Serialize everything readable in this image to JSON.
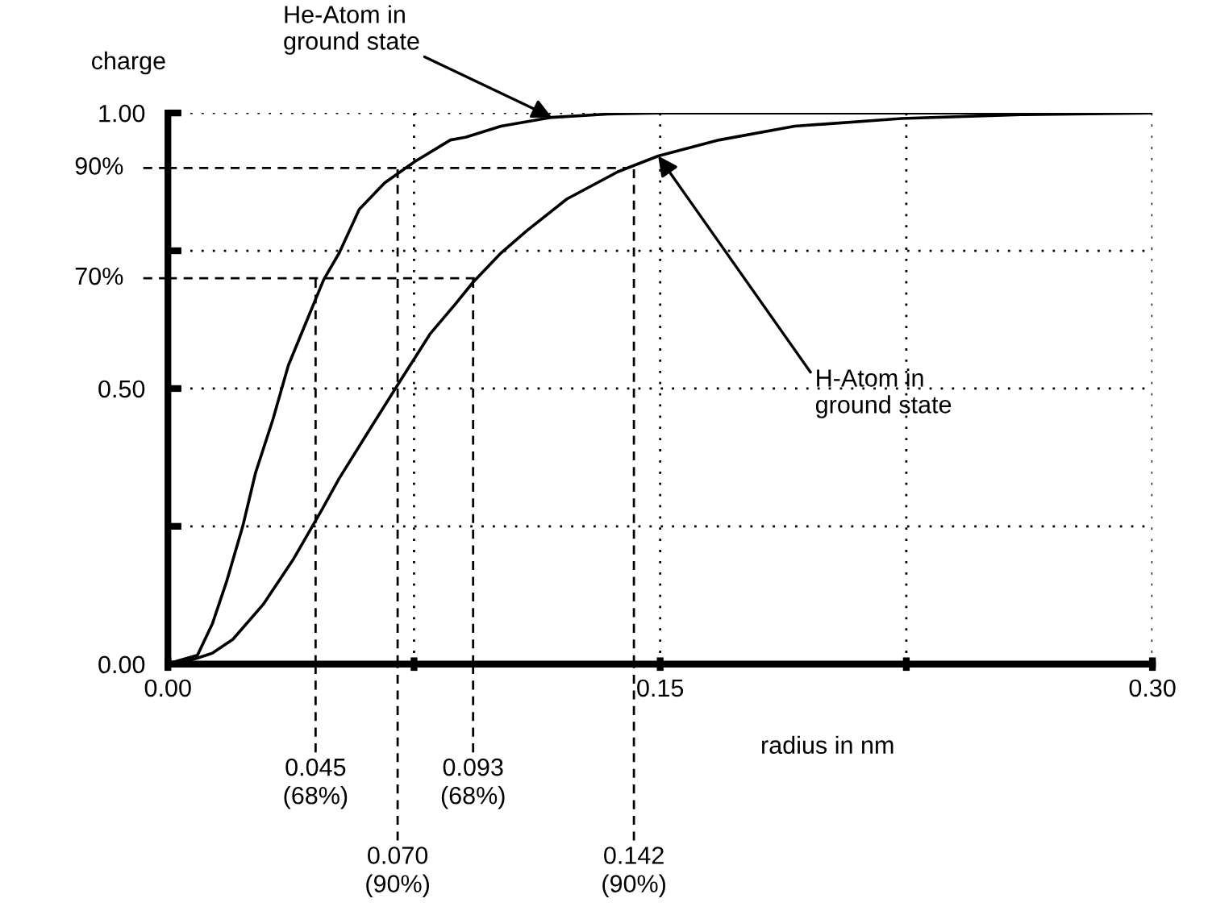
{
  "chart_data": {
    "type": "line",
    "xlabel": "radius in nm",
    "ylabel": "charge",
    "xlim": [
      0,
      0.3
    ],
    "ylim": [
      0,
      1.0
    ],
    "xticks": [
      {
        "value": 0,
        "label": "0.00"
      },
      {
        "value": 0.075,
        "label": null
      },
      {
        "value": 0.15,
        "label": "0.15"
      },
      {
        "value": 0.225,
        "label": null
      },
      {
        "value": 0.3,
        "label": "0.30"
      }
    ],
    "yticks": [
      {
        "value": 0,
        "label": "0.00"
      },
      {
        "value": 0.25,
        "label": null
      },
      {
        "value": 0.5,
        "label": "0.50"
      },
      {
        "value": 0.75,
        "label": null
      },
      {
        "value": 1.0,
        "label": "1.00"
      }
    ],
    "grid": true,
    "line_style": "solid",
    "series": [
      {
        "color": "#000000",
        "x": [
          0,
          0.003,
          0.009,
          0.0136,
          0.018,
          0.0228,
          0.0267,
          0.032,
          0.0367,
          0.0414,
          0.0475,
          0.0522,
          0.0583,
          0.066,
          0.0753,
          0.0861,
          0.0907,
          0.1015,
          0.117,
          0.134,
          0.15,
          0.2,
          0.25,
          0.3
        ],
        "values": [
          0,
          0.006,
          0.016,
          0.074,
          0.152,
          0.25,
          0.347,
          0.444,
          0.542,
          0.61,
          0.698,
          0.746,
          0.825,
          0.873,
          0.912,
          0.951,
          0.956,
          0.976,
          0.992,
          0.998,
          1.0,
          1.0,
          1.0,
          1.0
        ]
      },
      {
        "color": "#000000",
        "x": [
          0,
          0.003,
          0.009,
          0.0136,
          0.0198,
          0.029,
          0.0383,
          0.0468,
          0.0522,
          0.0614,
          0.0707,
          0.08,
          0.0877,
          0.093,
          0.1015,
          0.1093,
          0.1216,
          0.137,
          0.1494,
          0.168,
          0.191,
          0.2235,
          0.26,
          0.3
        ],
        "values": [
          0,
          0.001,
          0.011,
          0.02,
          0.045,
          0.108,
          0.191,
          0.279,
          0.337,
          0.425,
          0.513,
          0.6,
          0.654,
          0.693,
          0.746,
          0.786,
          0.844,
          0.893,
          0.922,
          0.951,
          0.976,
          0.99,
          0.997,
          1.0
        ]
      }
    ],
    "ref_lines": [
      {
        "axis": "y",
        "value": 0.9,
        "label": "90%",
        "line_style": "dashed"
      },
      {
        "axis": "y",
        "value": 0.7,
        "label": "70%",
        "line_style": "dashed"
      },
      {
        "axis": "x",
        "value": 0.045,
        "label": "0.045\n(68%)",
        "line_style": "dashed"
      },
      {
        "axis": "x",
        "value": 0.07,
        "label": "0.070\n(90%)",
        "line_style": "dashed"
      },
      {
        "axis": "x",
        "value": 0.093,
        "label": "0.093\n(68%)",
        "line_style": "dashed"
      },
      {
        "axis": "x",
        "value": 0.142,
        "label": "0.142\n(90%)",
        "line_style": "dashed"
      }
    ],
    "annotations": [
      {
        "text": "He-Atom in\nground state",
        "x": 0.117,
        "y": 0.992
      },
      {
        "text": "H-Atom in\nground state",
        "x": 0.1494,
        "y": 0.922
      }
    ]
  }
}
